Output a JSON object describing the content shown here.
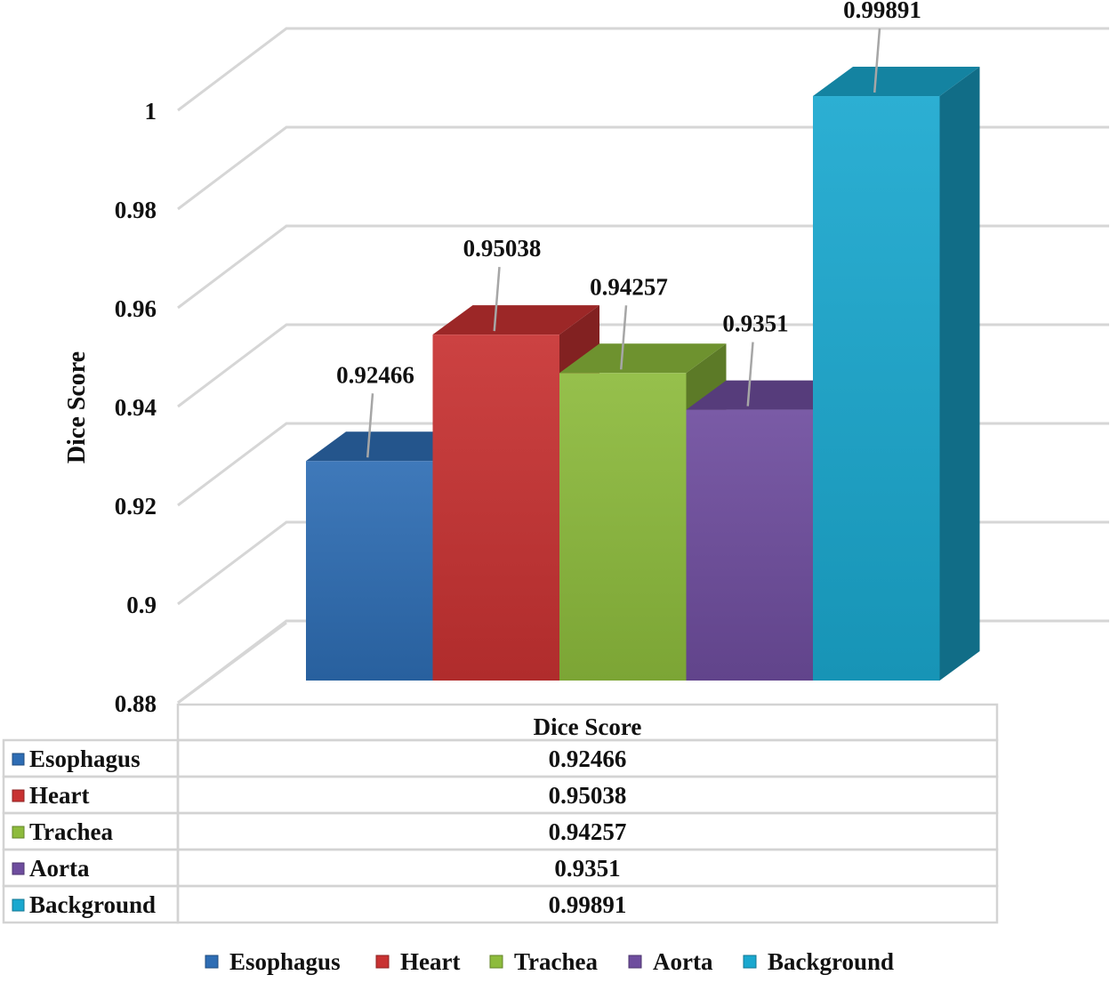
{
  "chart_data": {
    "type": "bar",
    "ylabel": "Dice Score",
    "ylim": [
      0.88,
      1.0
    ],
    "yticks": [
      "0.88",
      "0.9",
      "0.92",
      "0.94",
      "0.96",
      "0.98",
      "1"
    ],
    "ytick_values": [
      0.88,
      0.9,
      0.92,
      0.94,
      0.96,
      0.98,
      1.0
    ],
    "categories": [
      "Esophagus",
      "Heart",
      "Trachea",
      "Aorta",
      "Background"
    ],
    "values": [
      0.92466,
      0.95038,
      0.94257,
      0.9351,
      0.99891
    ],
    "value_labels": [
      "0.92466",
      "0.95038",
      "0.94257",
      "0.9351",
      "0.99891"
    ],
    "colors": [
      "#2e6db4",
      "#c83232",
      "#8dbb3c",
      "#6e4d9e",
      "#1aa8cf"
    ],
    "grid": true,
    "legend_position": "bottom",
    "data_table": {
      "header": "Dice Score",
      "rows": [
        {
          "name": "Esophagus",
          "value": "0.92466"
        },
        {
          "name": "Heart",
          "value": "0.95038"
        },
        {
          "name": "Trachea",
          "value": "0.94257"
        },
        {
          "name": "Aorta",
          "value": "0.9351"
        },
        {
          "name": "Background",
          "value": "0.99891"
        }
      ]
    }
  }
}
